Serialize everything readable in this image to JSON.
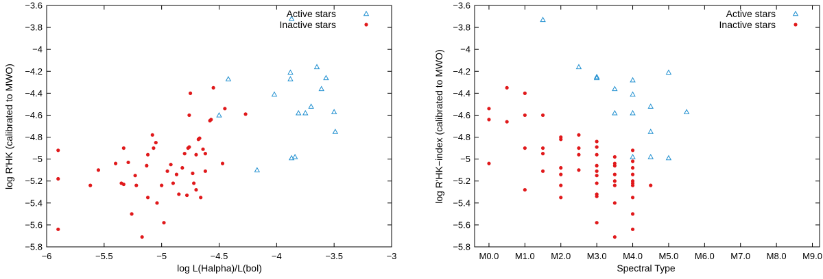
{
  "colors": {
    "active": "#1f8fd0",
    "inactive": "#e0191b",
    "axis": "#000000"
  },
  "chart_data": [
    {
      "type": "scatter",
      "xlabel": "log L(Halpha)/L(bol)",
      "ylabel": "log R'HK (calibrated to MWO)",
      "xlim": [
        -6,
        -3
      ],
      "ylim": [
        -5.8,
        -3.6
      ],
      "xticks": [
        -6,
        -5.5,
        -5,
        -4.5,
        -4,
        -3.5,
        -3
      ],
      "xtick_labels": [
        "−6",
        "−5.5",
        "−5",
        "−4.5",
        "−4",
        "−3.5",
        "−3"
      ],
      "yticks": [
        -5.8,
        -5.6,
        -5.4,
        -5.2,
        -5,
        -4.8,
        -4.6,
        -4.4,
        -4.2,
        -4,
        -3.8,
        -3.6
      ],
      "ytick_labels": [
        "−5.8",
        "−5.6",
        "−5.4",
        "−5.2",
        "−5",
        "−4.8",
        "−4.6",
        "−4.4",
        "−4.2",
        "−4",
        "−3.8",
        "−3.6"
      ],
      "legend": [
        "Active stars",
        "Inactive stars"
      ],
      "series": [
        {
          "name": "Active stars",
          "marker": "triangle",
          "points": [
            [
              -4.42,
              -4.27
            ],
            [
              -4.5,
              -4.6
            ],
            [
              -4.17,
              -5.1
            ],
            [
              -4.02,
              -4.41
            ],
            [
              -3.88,
              -4.21
            ],
            [
              -3.88,
              -4.27
            ],
            [
              -3.65,
              -4.16
            ],
            [
              -3.57,
              -4.26
            ],
            [
              -3.61,
              -4.36
            ],
            [
              -3.5,
              -4.57
            ],
            [
              -3.49,
              -4.75
            ],
            [
              -3.81,
              -4.58
            ],
            [
              -3.75,
              -4.58
            ],
            [
              -3.7,
              -4.52
            ],
            [
              -3.87,
              -4.99
            ],
            [
              -3.84,
              -4.98
            ],
            [
              -3.87,
              -3.72
            ]
          ]
        },
        {
          "name": "Inactive stars",
          "marker": "circle",
          "points": [
            [
              -5.9,
              -4.92
            ],
            [
              -5.9,
              -5.18
            ],
            [
              -5.9,
              -5.64
            ],
            [
              -5.62,
              -5.24
            ],
            [
              -5.55,
              -5.1
            ],
            [
              -5.4,
              -5.04
            ],
            [
              -5.35,
              -5.22
            ],
            [
              -5.33,
              -4.9
            ],
            [
              -5.33,
              -5.23
            ],
            [
              -5.29,
              -5.03
            ],
            [
              -5.26,
              -5.5
            ],
            [
              -5.23,
              -5.15
            ],
            [
              -5.22,
              -5.24
            ],
            [
              -5.17,
              -5.71
            ],
            [
              -5.13,
              -5.06
            ],
            [
              -5.12,
              -4.96
            ],
            [
              -5.12,
              -5.35
            ],
            [
              -5.08,
              -4.78
            ],
            [
              -5.07,
              -4.9
            ],
            [
              -5.05,
              -4.85
            ],
            [
              -5.04,
              -5.4
            ],
            [
              -5.0,
              -5.24
            ],
            [
              -4.98,
              -5.58
            ],
            [
              -4.95,
              -5.11
            ],
            [
              -4.92,
              -5.05
            ],
            [
              -4.9,
              -5.22
            ],
            [
              -4.87,
              -5.14
            ],
            [
              -4.85,
              -5.32
            ],
            [
              -4.82,
              -5.08
            ],
            [
              -4.8,
              -4.95
            ],
            [
              -4.78,
              -5.33
            ],
            [
              -4.77,
              -4.9
            ],
            [
              -4.76,
              -4.89
            ],
            [
              -4.76,
              -4.6
            ],
            [
              -4.75,
              -4.4
            ],
            [
              -4.73,
              -5.13
            ],
            [
              -4.72,
              -5.22
            ],
            [
              -4.7,
              -4.96
            ],
            [
              -4.7,
              -5.28
            ],
            [
              -4.68,
              -4.82
            ],
            [
              -4.67,
              -4.81
            ],
            [
              -4.66,
              -5.35
            ],
            [
              -4.64,
              -4.91
            ],
            [
              -4.62,
              -4.95
            ],
            [
              -4.62,
              -5.11
            ],
            [
              -4.58,
              -4.65
            ],
            [
              -4.57,
              -4.64
            ],
            [
              -4.55,
              -4.35
            ],
            [
              -4.47,
              -5.04
            ],
            [
              -4.45,
              -4.54
            ],
            [
              -4.27,
              -4.59
            ]
          ]
        }
      ]
    },
    {
      "type": "scatter",
      "xlabel": "Spectral Type",
      "ylabel": "log R'HK−index (calibrated to MWO)",
      "xlim": [
        -0.4,
        9.2
      ],
      "ylim": [
        -5.8,
        -3.6
      ],
      "xticks": [
        0,
        1,
        2,
        3,
        4,
        5,
        6,
        7,
        8,
        9
      ],
      "xtick_labels": [
        "M0.0",
        "M1.0",
        "M2.0",
        "M3.0",
        "M4.0",
        "M5.0",
        "M6.0",
        "M7.0",
        "M8.0",
        "M9.0"
      ],
      "yticks": [
        -5.8,
        -5.6,
        -5.4,
        -5.2,
        -5,
        -4.8,
        -4.6,
        -4.4,
        -4.2,
        -4,
        -3.8,
        -3.6
      ],
      "ytick_labels": [
        "−5.8",
        "−5.6",
        "−5.4",
        "−5.2",
        "−5",
        "−4.8",
        "−4.6",
        "−4.4",
        "−4.2",
        "−4",
        "−3.8",
        "−3.6"
      ],
      "legend": [
        "Active stars",
        "Inactive stars"
      ],
      "series": [
        {
          "name": "Active stars",
          "marker": "triangle",
          "points": [
            [
              1.5,
              -3.73
            ],
            [
              2.5,
              -4.16
            ],
            [
              3.0,
              -4.25
            ],
            [
              3.0,
              -4.26
            ],
            [
              3.5,
              -4.36
            ],
            [
              3.5,
              -4.58
            ],
            [
              4.0,
              -4.28
            ],
            [
              4.0,
              -4.41
            ],
            [
              4.0,
              -4.58
            ],
            [
              4.0,
              -4.98
            ],
            [
              4.5,
              -4.52
            ],
            [
              4.5,
              -4.75
            ],
            [
              4.5,
              -4.98
            ],
            [
              5.0,
              -4.21
            ],
            [
              5.0,
              -4.99
            ],
            [
              5.5,
              -4.57
            ]
          ]
        },
        {
          "name": "Inactive stars",
          "marker": "circle",
          "points": [
            [
              0,
              -4.54
            ],
            [
              0,
              -4.64
            ],
            [
              0,
              -5.04
            ],
            [
              0.5,
              -4.35
            ],
            [
              0.5,
              -4.66
            ],
            [
              1,
              -4.4
            ],
            [
              1,
              -4.6
            ],
            [
              1,
              -4.9
            ],
            [
              1,
              -5.28
            ],
            [
              1.5,
              -4.6
            ],
            [
              1.5,
              -4.9
            ],
            [
              1.5,
              -4.95
            ],
            [
              1.5,
              -5.11
            ],
            [
              2,
              -4.8
            ],
            [
              2,
              -4.82
            ],
            [
              2,
              -5.08
            ],
            [
              2,
              -5.14
            ],
            [
              2,
              -5.24
            ],
            [
              2,
              -5.35
            ],
            [
              2.5,
              -4.78
            ],
            [
              2.5,
              -4.9
            ],
            [
              2.5,
              -4.96
            ],
            [
              2.5,
              -5.1
            ],
            [
              3,
              -4.84
            ],
            [
              3,
              -4.89
            ],
            [
              3,
              -4.96
            ],
            [
              3,
              -5.06
            ],
            [
              3,
              -5.11
            ],
            [
              3,
              -5.15
            ],
            [
              3,
              -5.22
            ],
            [
              3,
              -5.32
            ],
            [
              3,
              -5.34
            ],
            [
              3,
              -5.58
            ],
            [
              3.5,
              -4.98
            ],
            [
              3.5,
              -5.04
            ],
            [
              3.5,
              -5.06
            ],
            [
              3.5,
              -5.14
            ],
            [
              3.5,
              -5.2
            ],
            [
              3.5,
              -5.24
            ],
            [
              3.5,
              -5.4
            ],
            [
              3.5,
              -5.71
            ],
            [
              4,
              -4.92
            ],
            [
              4,
              -5.02
            ],
            [
              4,
              -5.08
            ],
            [
              4,
              -5.14
            ],
            [
              4,
              -5.2
            ],
            [
              4,
              -5.22
            ],
            [
              4,
              -5.24
            ],
            [
              4,
              -5.35
            ],
            [
              4,
              -5.5
            ],
            [
              4,
              -5.64
            ],
            [
              4.5,
              -5.24
            ]
          ]
        }
      ]
    }
  ]
}
